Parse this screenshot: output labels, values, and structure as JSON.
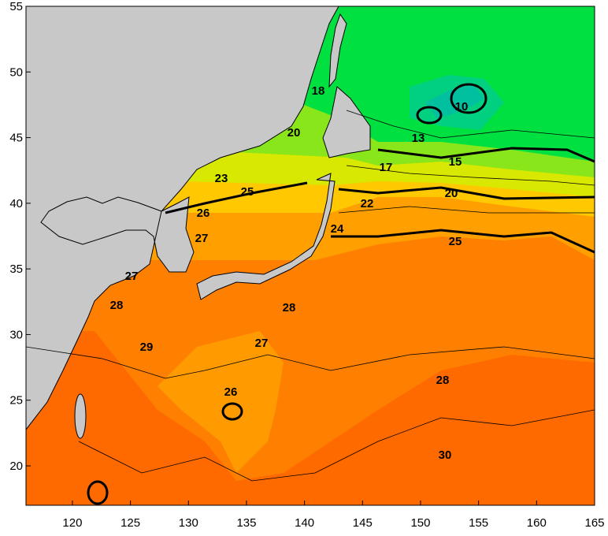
{
  "map": {
    "xlim": [
      116,
      165
    ],
    "ylim": [
      17,
      55
    ],
    "xticks": [
      120,
      125,
      130,
      135,
      140,
      145,
      150,
      155,
      160,
      165
    ],
    "yticks": [
      20,
      25,
      30,
      35,
      40,
      45,
      50,
      55
    ],
    "contour_labels": [
      "18",
      "20",
      "23",
      "25",
      "26",
      "27",
      "22",
      "24",
      "17",
      "15",
      "20",
      "13",
      "10",
      "25",
      "27",
      "28",
      "28",
      "27",
      "29",
      "28",
      "26",
      "30"
    ]
  }
}
